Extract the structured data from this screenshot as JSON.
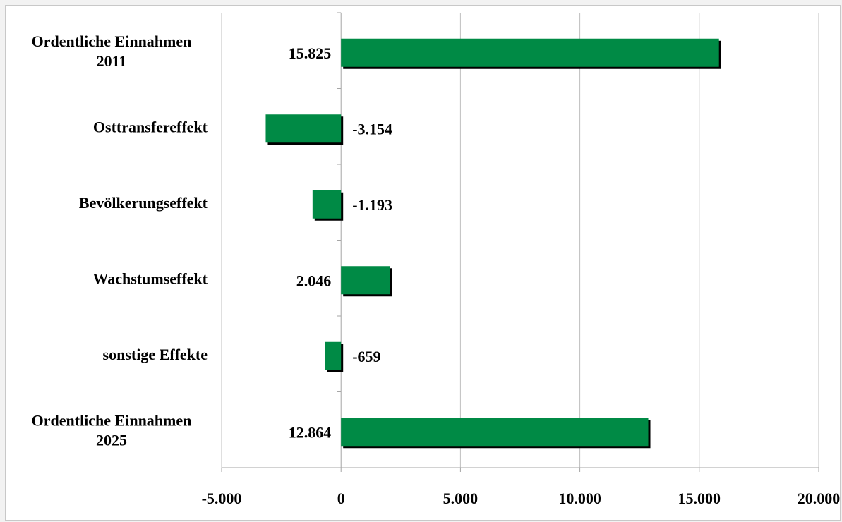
{
  "chart_data": {
    "type": "bar",
    "orientation": "horizontal",
    "title": "",
    "xlabel": "",
    "ylabel": "",
    "categories": [
      [
        "Ordentliche Einnahmen",
        "2011"
      ],
      [
        "Osttransfereffekt"
      ],
      [
        "Bevölkerungseffekt"
      ],
      [
        "Wachstumseffekt"
      ],
      [
        "sonstige Effekte"
      ],
      [
        "Ordentliche Einnahmen",
        "2025"
      ]
    ],
    "values": [
      15825,
      -3154,
      -1193,
      2046,
      -659,
      12864
    ],
    "value_labels": [
      "15.825",
      "-3.154",
      "-1.193",
      "2.046",
      "-659",
      "12.864"
    ],
    "xlim": [
      -5000,
      20000
    ],
    "xticks": [
      -5000,
      0,
      5000,
      10000,
      15000,
      20000
    ],
    "xtick_labels": [
      "-5.000",
      "0",
      "5.000",
      "10.000",
      "15.000",
      "20.000"
    ],
    "grid": "vertical",
    "legend": "none",
    "bar_color": "#008a45",
    "shadow_color": "#000000",
    "gridline_color": "#bfbfbf"
  }
}
